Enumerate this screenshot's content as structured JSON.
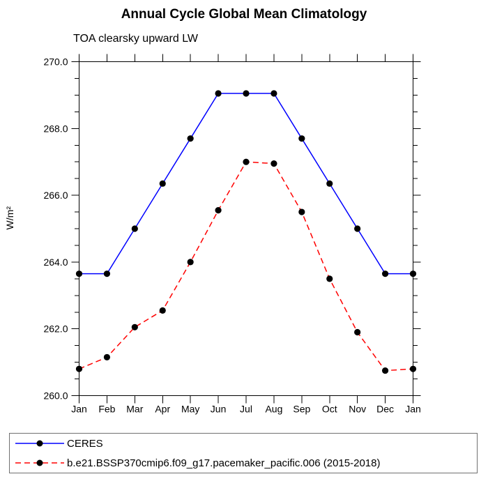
{
  "chart_data": {
    "type": "line",
    "title": "Annual Cycle Global Mean Climatology",
    "subtitle": "TOA clearsky upward LW",
    "ylabel": "W/m²",
    "xlabel": "",
    "categories": [
      "Jan",
      "Feb",
      "Mar",
      "Apr",
      "May",
      "Jun",
      "Jul",
      "Aug",
      "Sep",
      "Oct",
      "Nov",
      "Dec",
      "Jan"
    ],
    "ylim": [
      260.0,
      270.0
    ],
    "y_major_ticks": [
      260.0,
      262.0,
      264.0,
      266.0,
      268.0,
      270.0
    ],
    "y_tick_labels": [
      "260.0",
      "262.0",
      "264.0",
      "266.0",
      "268.0",
      "270.0"
    ],
    "y_minor_step": 0.5,
    "grid": false,
    "legend_position": "bottom",
    "marker": "filled-circle",
    "marker_color": "#000000",
    "axis_color": "#000000",
    "background_color": "#ffffff",
    "series": [
      {
        "name": "CERES",
        "color": "#0000ff",
        "line_style": "solid",
        "values": [
          263.65,
          263.65,
          265.0,
          266.35,
          267.7,
          269.05,
          269.05,
          269.05,
          267.7,
          266.35,
          265.0,
          263.65,
          263.65
        ]
      },
      {
        "name": "b.e21.BSSP370cmip6.f09_g17.pacemaker_pacific.006 (2015-2018)",
        "color": "#ff0000",
        "line_style": "dashed",
        "values": [
          260.8,
          261.15,
          262.05,
          262.55,
          264.0,
          265.55,
          267.0,
          266.95,
          265.5,
          263.5,
          261.9,
          260.75,
          260.8
        ]
      }
    ]
  }
}
